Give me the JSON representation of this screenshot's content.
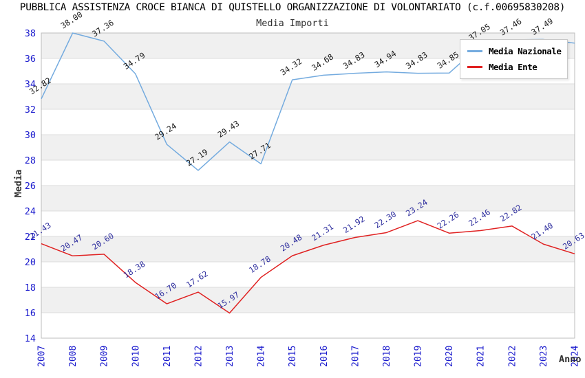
{
  "title": "PUBBLICA ASSISTENZA CROCE BIANCA DI QUISTELLO ORGANIZZAZIONE DI VOLONTARIATO (c.f.00695830208)",
  "chart_data": {
    "type": "line",
    "title": "Media Importi",
    "xlabel": "Anno",
    "ylabel": "Media",
    "ylim": [
      14,
      38
    ],
    "ytick_step": 2,
    "grid": "horizontal-alternating-bands",
    "legend_position": "top-right",
    "categories": [
      "2007",
      "2008",
      "2009",
      "2010",
      "2011",
      "2012",
      "2013",
      "2014",
      "2015",
      "2016",
      "2017",
      "2018",
      "2019",
      "2020",
      "2021",
      "2022",
      "2023",
      "2024"
    ],
    "series": [
      {
        "name": "Media Nazionale",
        "color": "#74ABDF",
        "label_color": "#1a1a1a",
        "values": [
          32.82,
          38.0,
          37.36,
          34.79,
          29.24,
          27.19,
          29.43,
          27.71,
          34.32,
          34.68,
          34.83,
          34.94,
          34.83,
          34.85,
          37.05,
          37.46,
          37.49,
          37.2
        ],
        "point_labels": [
          "32.82",
          "38.00",
          "37.36",
          "34.79",
          "29.24",
          "27.19",
          "29.43",
          "27.71",
          "34.32",
          "34.68",
          "34.83",
          "34.94",
          "34.83",
          "34.85",
          "37.05",
          "37.46",
          "37.49",
          ""
        ]
      },
      {
        "name": "Media Ente",
        "color": "#E02222",
        "label_color": "#2E2E9E",
        "values": [
          21.43,
          20.47,
          20.6,
          18.38,
          16.7,
          17.62,
          15.97,
          18.78,
          20.48,
          21.31,
          21.92,
          22.3,
          23.24,
          22.26,
          22.46,
          22.82,
          21.4,
          20.63
        ],
        "point_labels": [
          "21.43",
          "20.47",
          "20.60",
          "18.38",
          "16.70",
          "17.62",
          "15.97",
          "18.78",
          "20.48",
          "21.31",
          "21.92",
          "22.30",
          "23.24",
          "22.26",
          "22.46",
          "22.82",
          "21.40",
          "20.63"
        ]
      }
    ],
    "style": {
      "tick_label_color": "#1A1ACD",
      "band_color": "#F0F0F0",
      "plot_border_color": "#BDBDBD",
      "grid_line_color": "#DCDCDC",
      "axis_title_color": "#303030"
    }
  }
}
